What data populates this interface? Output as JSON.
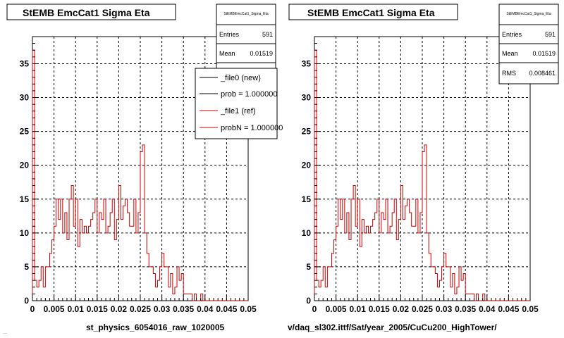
{
  "footer_note": "...",
  "chart_data": [
    {
      "type": "histogram",
      "title": "StEMB EmcCat1 Sigma Eta",
      "xlabel": "st_physics_6054016_raw_1020005",
      "ylabel": "",
      "xlim": [
        0,
        0.05
      ],
      "ylim": [
        0,
        39
      ],
      "grid": true,
      "x_ticks": [
        "0",
        "0.005",
        "0.01",
        "0.015",
        "0.02",
        "0.025",
        "0.03",
        "0.035",
        "0.04",
        "0.045",
        "0.05"
      ],
      "y_ticks": [
        "0",
        "5",
        "10",
        "15",
        "20",
        "25",
        "30",
        "35"
      ],
      "stats": {
        "header": "StEMBEmcCat1_Sigma_Eta",
        "rows": [
          {
            "label": "Entries",
            "value": "591"
          },
          {
            "label": "Mean",
            "value": "0.01519"
          }
        ]
      },
      "legend": {
        "placement": "top-right",
        "entries": [
          {
            "label": "_file0 (new)",
            "color": "#000000"
          },
          {
            "label": "prob = 1.000000",
            "color": "#000000"
          },
          {
            "label": "_file1 (ref)",
            "color": "#cc0000"
          },
          {
            "label": "probN = 1.000000",
            "color": "#cc0000"
          }
        ]
      },
      "series": [
        {
          "color": "#cc0000",
          "bin_width": 0.0005,
          "values": [
            37,
            3,
            2,
            3,
            5,
            2,
            5,
            5,
            7,
            9,
            11,
            15,
            12,
            15,
            10,
            13,
            9,
            15,
            17,
            11,
            15,
            8,
            12,
            10,
            11,
            10,
            11,
            12,
            13,
            15,
            10,
            13,
            12,
            15,
            10,
            11,
            13,
            15,
            9,
            12,
            17,
            12,
            14,
            15,
            13,
            11,
            11,
            15,
            10,
            13,
            22,
            23,
            10,
            7,
            5,
            5,
            4,
            2,
            3,
            5,
            7,
            5,
            5,
            2,
            4,
            1,
            2,
            5,
            3,
            4,
            1,
            1,
            1,
            1,
            0,
            1,
            0,
            0,
            1,
            0,
            0,
            0,
            0,
            0,
            0,
            0,
            0,
            0,
            0,
            0,
            0,
            0,
            0,
            0,
            0,
            0,
            0,
            0,
            0,
            0
          ]
        }
      ]
    },
    {
      "type": "histogram",
      "title": "StEMB EmcCat1 Sigma Eta",
      "xlabel": "v/daq_sl302.ittf/Sat/year_2005/CuCu200_HighTower/",
      "ylabel": "",
      "xlim": [
        0,
        0.05
      ],
      "ylim": [
        0,
        39
      ],
      "grid": true,
      "x_ticks": [
        "0",
        "0.005",
        "0.01",
        "0.015",
        "0.02",
        "0.025",
        "0.03",
        "0.035",
        "0.04",
        "0.045",
        "0.05"
      ],
      "y_ticks": [
        "0",
        "5",
        "10",
        "15",
        "20",
        "25",
        "30",
        "35"
      ],
      "stats": {
        "header": "StEMBEmcCat1_Sigma_Eta",
        "rows": [
          {
            "label": "Entries",
            "value": "591"
          },
          {
            "label": "Mean",
            "value": "0.01519"
          },
          {
            "label": "RMS",
            "value": "0.008461"
          }
        ]
      },
      "series": [
        {
          "color": "#cc0000",
          "bin_width": 0.0005,
          "values": [
            37,
            3,
            2,
            3,
            5,
            2,
            5,
            5,
            7,
            9,
            11,
            15,
            12,
            15,
            10,
            13,
            9,
            15,
            17,
            11,
            15,
            8,
            12,
            10,
            11,
            10,
            11,
            12,
            13,
            15,
            10,
            13,
            12,
            15,
            10,
            11,
            13,
            15,
            9,
            12,
            17,
            12,
            14,
            15,
            13,
            11,
            11,
            15,
            10,
            13,
            22,
            23,
            10,
            7,
            5,
            5,
            4,
            2,
            3,
            5,
            7,
            5,
            5,
            2,
            4,
            1,
            2,
            5,
            3,
            4,
            1,
            1,
            1,
            1,
            0,
            1,
            0,
            0,
            1,
            0,
            0,
            0,
            0,
            0,
            0,
            0,
            0,
            0,
            0,
            0,
            0,
            0,
            0,
            0,
            0,
            0,
            0,
            0,
            0,
            0
          ]
        }
      ]
    }
  ]
}
